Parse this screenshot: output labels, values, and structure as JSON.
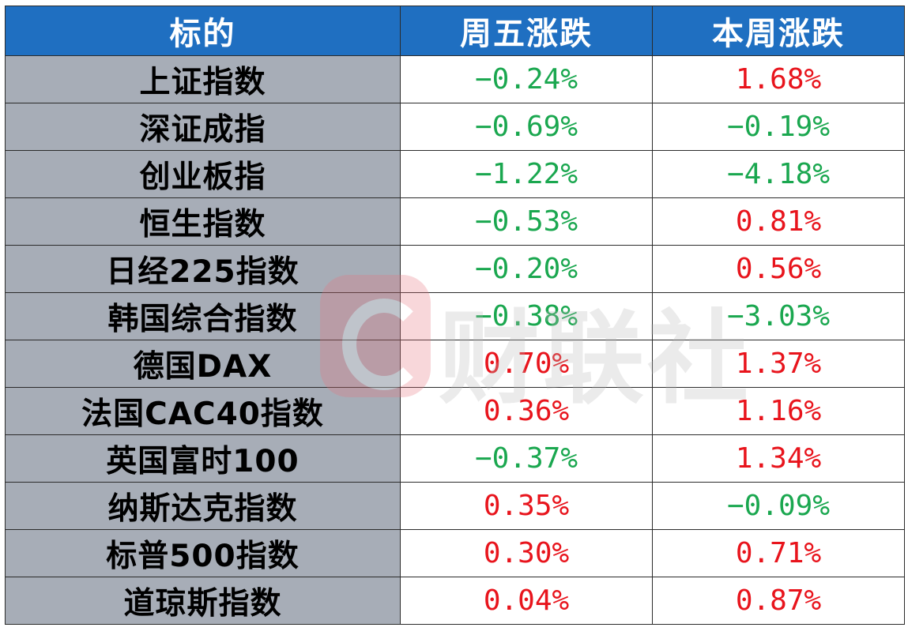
{
  "table": {
    "headers": [
      "标的",
      "周五涨跌",
      "本周涨跌"
    ],
    "rows": [
      {
        "name": "上证指数",
        "fri": "−0.24%",
        "fri_dir": "neg",
        "week": "1.68%",
        "week_dir": "pos"
      },
      {
        "name": "深证成指",
        "fri": "−0.69%",
        "fri_dir": "neg",
        "week": "−0.19%",
        "week_dir": "neg"
      },
      {
        "name": "创业板指",
        "fri": "−1.22%",
        "fri_dir": "neg",
        "week": "−4.18%",
        "week_dir": "neg"
      },
      {
        "name": "恒生指数",
        "fri": "−0.53%",
        "fri_dir": "neg",
        "week": "0.81%",
        "week_dir": "pos"
      },
      {
        "name": "日经225指数",
        "fri": "−0.20%",
        "fri_dir": "neg",
        "week": "0.56%",
        "week_dir": "pos"
      },
      {
        "name": "韩国综合指数",
        "fri": "−0.38%",
        "fri_dir": "neg",
        "week": "−3.03%",
        "week_dir": "neg"
      },
      {
        "name": "德国DAX",
        "fri": "0.70%",
        "fri_dir": "pos",
        "week": "1.37%",
        "week_dir": "pos"
      },
      {
        "name": "法国CAC40指数",
        "fri": "0.36%",
        "fri_dir": "pos",
        "week": "1.16%",
        "week_dir": "pos"
      },
      {
        "name": "英国富时100",
        "fri": "−0.37%",
        "fri_dir": "neg",
        "week": "1.34%",
        "week_dir": "pos"
      },
      {
        "name": "纳斯达克指数",
        "fri": "0.35%",
        "fri_dir": "pos",
        "week": "−0.09%",
        "week_dir": "neg"
      },
      {
        "name": "标普500指数",
        "fri": "0.30%",
        "fri_dir": "pos",
        "week": "0.71%",
        "week_dir": "pos"
      },
      {
        "name": "道琼斯指数",
        "fri": "0.04%",
        "fri_dir": "pos",
        "week": "0.87%",
        "week_dir": "pos"
      }
    ]
  },
  "colors": {
    "header_bg": "#1f6fc1",
    "name_bg": "#a7adb7",
    "positive": "#e8141c",
    "negative": "#1aa74f"
  },
  "watermark": {
    "text": "财联社",
    "logo_icon": "cls-logo-icon"
  }
}
